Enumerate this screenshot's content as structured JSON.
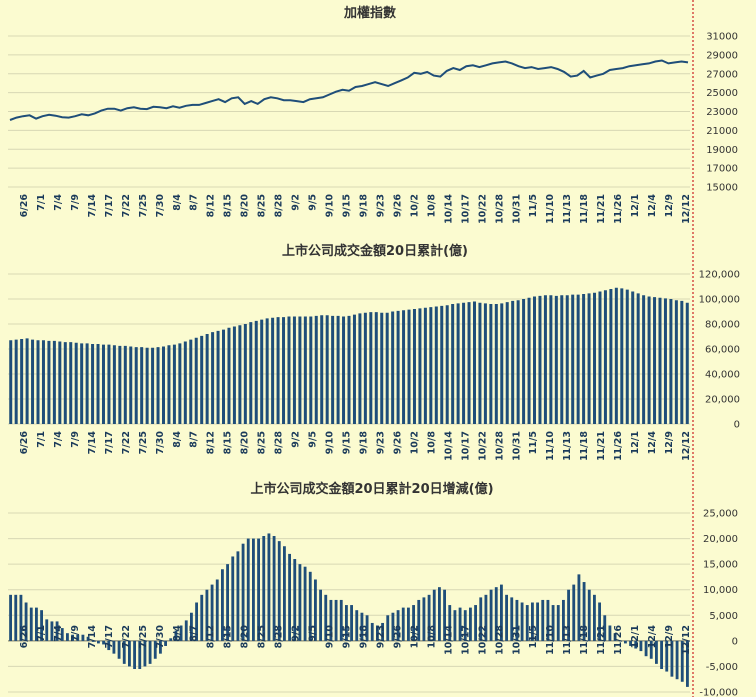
{
  "chart_data": [
    {
      "type": "line",
      "title": "加權指數",
      "ylim": [
        15000,
        31000
      ],
      "yticks": [
        "31000",
        "29000",
        "27000",
        "25000",
        "23000",
        "21000",
        "19000",
        "17000",
        "15000"
      ],
      "color": "#1f4e79",
      "x_labels": [
        "6/26",
        "7/1",
        "7/4",
        "7/9",
        "7/14",
        "7/17",
        "7/22",
        "7/25",
        "7/30",
        "8/4",
        "8/7",
        "8/12",
        "8/15",
        "8/20",
        "8/25",
        "8/28",
        "9/2",
        "9/5",
        "9/10",
        "9/15",
        "9/18",
        "9/23",
        "9/26",
        "10/2",
        "10/8",
        "10/14",
        "10/17",
        "10/22",
        "10/28",
        "10/31",
        "11/5",
        "11/10",
        "11/13",
        "11/18",
        "11/21",
        "11/26",
        "12/1",
        "12/4",
        "12/9",
        "12/12"
      ],
      "values": [
        22100,
        22350,
        22500,
        22600,
        22250,
        22500,
        22650,
        22550,
        22400,
        22350,
        22500,
        22700,
        22600,
        22800,
        23100,
        23300,
        23300,
        23100,
        23350,
        23450,
        23300,
        23250,
        23500,
        23450,
        23350,
        23550,
        23400,
        23600,
        23700,
        23700,
        23900,
        24100,
        24300,
        24000,
        24400,
        24500,
        23800,
        24100,
        23800,
        24300,
        24500,
        24400,
        24200,
        24200,
        24100,
        24000,
        24300,
        24400,
        24500,
        24800,
        25100,
        25300,
        25200,
        25600,
        25700,
        25900,
        26100,
        25900,
        25700,
        26000,
        26300,
        26600,
        27100,
        27000,
        27200,
        26800,
        26700,
        27300,
        27600,
        27400,
        27800,
        27900,
        27700,
        27900,
        28100,
        28200,
        28300,
        28100,
        27800,
        27600,
        27700,
        27500,
        27600,
        27700,
        27500,
        27200,
        26700,
        26800,
        27300,
        26600,
        26800,
        27000,
        27400,
        27500,
        27600,
        27800,
        27900,
        28000,
        28100,
        28300,
        28400,
        28100,
        28200,
        28300,
        28200
      ]
    },
    {
      "type": "bar",
      "title": "上市公司成交金額20日累計(億)",
      "ylim": [
        0,
        120000
      ],
      "yticks": [
        "120,000",
        "100,000",
        "80,000",
        "60,000",
        "40,000",
        "20,000",
        "0"
      ],
      "color": "#1f4e79",
      "x_labels": [
        "6/26",
        "7/1",
        "7/4",
        "7/9",
        "7/14",
        "7/17",
        "7/22",
        "7/25",
        "7/30",
        "8/4",
        "8/7",
        "8/12",
        "8/15",
        "8/20",
        "8/25",
        "8/28",
        "9/2",
        "9/5",
        "9/10",
        "9/15",
        "9/18",
        "9/23",
        "9/26",
        "10/2",
        "10/8",
        "10/14",
        "10/17",
        "10/22",
        "10/28",
        "10/31",
        "11/5",
        "11/10",
        "11/13",
        "11/18",
        "11/21",
        "11/26",
        "12/1",
        "12/4",
        "12/9",
        "12/12"
      ],
      "values": [
        67000,
        67500,
        68000,
        68500,
        67500,
        67000,
        67000,
        66500,
        66500,
        66000,
        65500,
        65500,
        65000,
        64500,
        64500,
        64000,
        64000,
        63500,
        63500,
        63000,
        62500,
        62500,
        62000,
        61500,
        61500,
        61000,
        61000,
        61500,
        62000,
        63000,
        63500,
        64500,
        66000,
        67500,
        69000,
        70500,
        72000,
        73500,
        74500,
        75500,
        77000,
        78000,
        79000,
        80000,
        81500,
        82500,
        83500,
        84500,
        85000,
        85500,
        85500,
        86000,
        86000,
        86000,
        86000,
        86000,
        86500,
        87000,
        87000,
        86500,
        86500,
        86000,
        86500,
        87500,
        88500,
        89000,
        89500,
        89500,
        89000,
        89000,
        90000,
        90500,
        91000,
        91500,
        92000,
        92500,
        93000,
        93500,
        94000,
        94500,
        95000,
        96000,
        96500,
        97000,
        97500,
        98000,
        97000,
        96500,
        96000,
        96000,
        96500,
        97500,
        98500,
        99000,
        100000,
        101000,
        102000,
        102500,
        103000,
        103000,
        102500,
        103000,
        103000,
        103500,
        103500,
        104000,
        104500,
        105000,
        106000,
        107000,
        108000,
        109000,
        108500,
        107500,
        106000,
        104500,
        103000,
        102000,
        101500,
        101000,
        100500,
        100000,
        99000,
        98500,
        97000
      ]
    },
    {
      "type": "bar",
      "title": "上市公司成交金額20日累計20日增減(億)",
      "ylim": [
        -10000,
        25000
      ],
      "yticks": [
        "25,000",
        "20,000",
        "15,000",
        "10,000",
        "5,000",
        "0",
        "-5,000",
        "-10,000"
      ],
      "color": "#1f4e79",
      "x_labels": [
        "6/26",
        "7/1",
        "7/4",
        "7/9",
        "7/14",
        "7/17",
        "7/22",
        "7/25",
        "7/30",
        "8/4",
        "8/7",
        "8/12",
        "8/15",
        "8/20",
        "8/25",
        "8/28",
        "9/2",
        "9/5",
        "9/10",
        "9/15",
        "9/18",
        "9/23",
        "9/26",
        "10/2",
        "10/8",
        "10/14",
        "10/17",
        "10/22",
        "10/28",
        "10/31",
        "11/5",
        "11/10",
        "11/13",
        "11/18",
        "11/21",
        "11/26",
        "12/1",
        "12/4",
        "12/9",
        "12/12"
      ],
      "values": [
        9000,
        9000,
        9000,
        7500,
        6500,
        6500,
        6000,
        4200,
        3800,
        3800,
        2500,
        1500,
        1200,
        1200,
        1200,
        800,
        -200,
        -500,
        -700,
        -1800,
        -2500,
        -3500,
        -4500,
        -5000,
        -5500,
        -5500,
        -5000,
        -4500,
        -3500,
        -2500,
        -1000,
        500,
        2000,
        3000,
        4000,
        5500,
        7500,
        9000,
        10000,
        11000,
        12000,
        14000,
        15000,
        16500,
        17500,
        19000,
        20000,
        20000,
        20000,
        20500,
        21000,
        20500,
        19500,
        18500,
        17000,
        16000,
        15000,
        14500,
        13500,
        12000,
        10000,
        9000,
        8000,
        8000,
        8000,
        7000,
        7000,
        6000,
        5500,
        5000,
        3500,
        3000,
        3500,
        5000,
        5500,
        6000,
        6500,
        6500,
        7000,
        8000,
        8500,
        9000,
        10000,
        10500,
        10000,
        7000,
        6000,
        6500,
        6000,
        6500,
        7000,
        8500,
        9000,
        10000,
        10500,
        11000,
        9000,
        8500,
        8000,
        7500,
        7000,
        7500,
        7500,
        8000,
        8000,
        7000,
        7000,
        8000,
        10000,
        11000,
        13000,
        11500,
        10000,
        9000,
        7500,
        5000,
        3000,
        1500,
        0,
        -500,
        -1000,
        -1500,
        -2000,
        -3000,
        -3500,
        -4500,
        -5500,
        -6000,
        -7000,
        -7500,
        -8000,
        -9000
      ]
    }
  ]
}
